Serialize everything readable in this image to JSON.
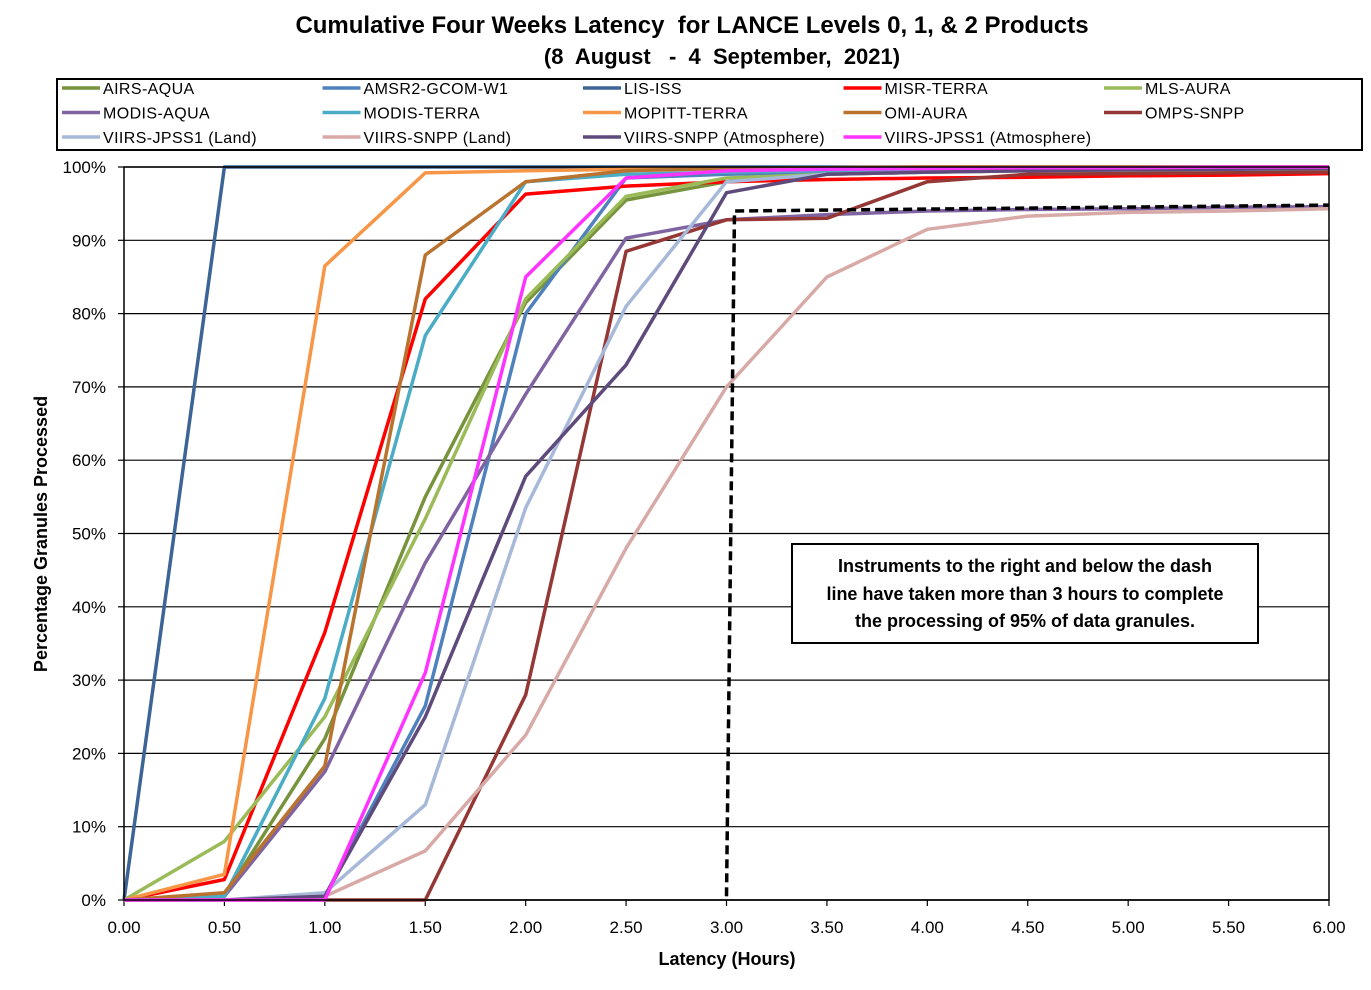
{
  "chart_data": {
    "type": "line",
    "title": "Cumulative Four Weeks Latency  for LANCE Levels 0, 1, & 2 Products",
    "subtitle": "(8  August   -  4  September,  2021)",
    "xlabel": "Latency (Hours)",
    "ylabel": "Percentage Granules Processed",
    "xlim": [
      0,
      6
    ],
    "ylim": [
      0,
      100
    ],
    "grid": "horizontal",
    "legend": "top",
    "x_tick_labels": [
      "0.00",
      "0.50",
      "1.00",
      "1.50",
      "2.00",
      "2.50",
      "3.00",
      "3.50",
      "4.00",
      "4.50",
      "5.00",
      "5.50",
      "6.00"
    ],
    "y_tick_labels": [
      "0%",
      "10%",
      "20%",
      "30%",
      "40%",
      "50%",
      "60%",
      "70%",
      "80%",
      "90%",
      "100%"
    ],
    "x": [
      0,
      0.5,
      1,
      1.5,
      2,
      2.5,
      3,
      3.5,
      4,
      4.5,
      5,
      5.5,
      6
    ],
    "series": [
      {
        "name": "AIRS-AQUA",
        "color": "#77933C",
        "values": [
          0,
          0.5,
          22,
          55,
          81.5,
          95.5,
          98,
          99,
          99.3,
          99.5,
          99.5,
          99.6,
          99.7
        ]
      },
      {
        "name": "AMSR2-GCOM-W1",
        "color": "#4F81BD",
        "values": [
          0,
          0,
          0.5,
          26.5,
          80,
          98.5,
          99,
          99.3,
          99.5,
          99.6,
          99.7,
          99.8,
          99.8
        ]
      },
      {
        "name": "LIS-ISS",
        "color": "#3C6496",
        "values": [
          0,
          100,
          100,
          100,
          100,
          100,
          100,
          100,
          100,
          100,
          100,
          100,
          100
        ]
      },
      {
        "name": "MISR-TERRA",
        "color": "#FF0000",
        "values": [
          0,
          2.8,
          36.5,
          82,
          96.3,
          97.4,
          98,
          98.3,
          98.5,
          98.6,
          98.8,
          98.9,
          99.1
        ]
      },
      {
        "name": "MLS-AURA",
        "color": "#9BBB59",
        "values": [
          0,
          8,
          25,
          52,
          82,
          96,
          98.5,
          99,
          99.3,
          99.5,
          99.5,
          99.6,
          99.7
        ]
      },
      {
        "name": "MODIS-AQUA",
        "color": "#8064A2",
        "values": [
          0,
          0.5,
          17.5,
          46,
          69,
          90.3,
          92.8,
          93.5,
          94,
          94.2,
          94.3,
          94.5,
          94.6
        ]
      },
      {
        "name": "MODIS-TERRA",
        "color": "#4BACC6",
        "values": [
          0,
          0.5,
          27.5,
          77,
          98,
          99,
          99.3,
          99.5,
          99.6,
          99.7,
          99.8,
          99.8,
          99.9
        ]
      },
      {
        "name": "MOPITT-TERRA",
        "color": "#F79646",
        "values": [
          0,
          3.5,
          86.5,
          99.2,
          99.5,
          99.7,
          99.8,
          99.9,
          100,
          100,
          100,
          100,
          100
        ]
      },
      {
        "name": "OMI-AURA",
        "color": "#B9732F",
        "values": [
          0,
          1,
          18.3,
          88,
          98,
          99.5,
          99.8,
          99.9,
          100,
          100,
          100,
          100,
          100
        ]
      },
      {
        "name": "OMPS-SNPP",
        "color": "#953735",
        "values": [
          0,
          0,
          0,
          0,
          28,
          88.5,
          92.8,
          93,
          98,
          99,
          99.1,
          99.2,
          99.3
        ]
      },
      {
        "name": "VIIRS-JPSS1 (Land)",
        "color": "#A7B9D9",
        "values": [
          0,
          0,
          1,
          13,
          53.5,
          81,
          98,
          99,
          99.3,
          99.5,
          99.6,
          99.7,
          99.8
        ]
      },
      {
        "name": "VIIRS-SNPP (Land)",
        "color": "#D8AAA7",
        "values": [
          0,
          0,
          0.5,
          6.7,
          22.5,
          48,
          70,
          85,
          91.5,
          93.3,
          93.8,
          94,
          94.3
        ]
      },
      {
        "name": "VIIRS-SNPP (Atmosphere)",
        "color": "#5F4A7C",
        "values": [
          0,
          0,
          0.5,
          25,
          57.8,
          73,
          96.5,
          99,
          99.3,
          99.5,
          99.6,
          99.7,
          99.8
        ]
      },
      {
        "name": "VIIRS-JPSS1 (Atmosphere)",
        "color": "#FF33FF",
        "values": [
          0,
          0,
          0,
          31,
          85,
          98.5,
          99.5,
          99.7,
          99.8,
          99.9,
          99.9,
          100,
          100
        ]
      }
    ],
    "reference_line": {
      "style": "dashed",
      "color": "#000000",
      "points": [
        [
          3.0,
          0.5
        ],
        [
          3.04,
          94
        ],
        [
          6.0,
          94.8
        ]
      ]
    },
    "annotation": [
      "Instruments to the right and below the dash",
      "line have taken more than 3 hours to complete",
      "the processing of 95% of data granules."
    ]
  }
}
